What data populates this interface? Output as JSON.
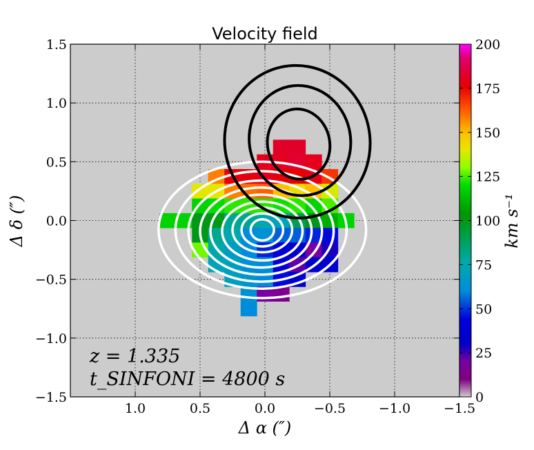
{
  "chart_data": {
    "type": "heatmap",
    "title": "Velocity field",
    "xlabel": "Δ α  (″)",
    "ylabel": "Δ δ  (″)",
    "xlim": [
      1.5,
      -1.5
    ],
    "ylim": [
      -1.5,
      1.5
    ],
    "grid": true,
    "x_ticks": [
      1.0,
      0.5,
      0.0,
      -0.5,
      -1.0,
      -1.5
    ],
    "x_tick_labels": [
      "1.0",
      "0.5",
      "0.0",
      "−0.5",
      "−1.0",
      "−1.5"
    ],
    "y_ticks": [
      -1.5,
      -1.0,
      -0.5,
      0.0,
      0.5,
      1.0,
      1.5
    ],
    "y_tick_labels": [
      "−1.5",
      "−1.0",
      "−0.5",
      "0.0",
      "0.5",
      "1.0",
      "1.5"
    ],
    "background_color": "#cccccc",
    "colorbar": {
      "label": "km s⁻¹",
      "range": [
        0,
        200
      ],
      "ticks": [
        0,
        25,
        50,
        75,
        100,
        125,
        150,
        175,
        200
      ],
      "tick_labels": [
        "0",
        "25",
        "50",
        "75",
        "100",
        "125",
        "150",
        "175",
        "200"
      ],
      "colormap": "nipy_spectral"
    },
    "annotations": [
      {
        "id": "redshift",
        "text": "z = 1.335"
      },
      {
        "id": "exposure",
        "text": "t_SINFONI = 4800 s"
      }
    ],
    "pixel_size": 0.125,
    "pixels": [
      {
        "x": -0.25,
        "y": 0.625,
        "v": 182
      },
      {
        "x": -0.125,
        "y": 0.625,
        "v": 182
      },
      {
        "x": 0.0,
        "y": 0.5,
        "v": 180
      },
      {
        "x": -0.125,
        "y": 0.5,
        "v": 181
      },
      {
        "x": -0.25,
        "y": 0.5,
        "v": 183
      },
      {
        "x": -0.375,
        "y": 0.5,
        "v": 180
      },
      {
        "x": 0.375,
        "y": 0.375,
        "v": 158
      },
      {
        "x": 0.25,
        "y": 0.375,
        "v": 178
      },
      {
        "x": 0.125,
        "y": 0.375,
        "v": 178
      },
      {
        "x": 0.0,
        "y": 0.375,
        "v": 180
      },
      {
        "x": -0.125,
        "y": 0.375,
        "v": 178
      },
      {
        "x": -0.25,
        "y": 0.375,
        "v": 176
      },
      {
        "x": -0.375,
        "y": 0.375,
        "v": 180
      },
      {
        "x": -0.5,
        "y": 0.375,
        "v": 168
      },
      {
        "x": 0.5,
        "y": 0.25,
        "v": 140
      },
      {
        "x": 0.375,
        "y": 0.25,
        "v": 140
      },
      {
        "x": 0.25,
        "y": 0.25,
        "v": 158
      },
      {
        "x": 0.125,
        "y": 0.25,
        "v": 160
      },
      {
        "x": 0.0,
        "y": 0.25,
        "v": 162
      },
      {
        "x": -0.125,
        "y": 0.25,
        "v": 150
      },
      {
        "x": -0.25,
        "y": 0.25,
        "v": 142
      },
      {
        "x": -0.375,
        "y": 0.25,
        "v": 150
      },
      {
        "x": -0.5,
        "y": 0.25,
        "v": 138
      },
      {
        "x": 0.5,
        "y": 0.125,
        "v": 118
      },
      {
        "x": 0.375,
        "y": 0.125,
        "v": 120
      },
      {
        "x": 0.25,
        "y": 0.125,
        "v": 123
      },
      {
        "x": 0.125,
        "y": 0.125,
        "v": 123
      },
      {
        "x": 0.0,
        "y": 0.125,
        "v": 123
      },
      {
        "x": -0.125,
        "y": 0.125,
        "v": 121
      },
      {
        "x": -0.25,
        "y": 0.125,
        "v": 123
      },
      {
        "x": -0.375,
        "y": 0.125,
        "v": 118
      },
      {
        "x": -0.5,
        "y": 0.125,
        "v": 125
      },
      {
        "x": 0.75,
        "y": 0.0,
        "v": 118
      },
      {
        "x": 0.625,
        "y": 0.0,
        "v": 118
      },
      {
        "x": 0.5,
        "y": 0.0,
        "v": 100
      },
      {
        "x": 0.375,
        "y": 0.0,
        "v": 100
      },
      {
        "x": 0.25,
        "y": 0.0,
        "v": 80
      },
      {
        "x": 0.125,
        "y": 0.0,
        "v": 80
      },
      {
        "x": 0.0,
        "y": 0.0,
        "v": 75
      },
      {
        "x": -0.125,
        "y": 0.0,
        "v": 72
      },
      {
        "x": -0.25,
        "y": 0.0,
        "v": 90
      },
      {
        "x": -0.375,
        "y": 0.0,
        "v": 100
      },
      {
        "x": -0.5,
        "y": 0.0,
        "v": 110
      },
      {
        "x": -0.625,
        "y": 0.0,
        "v": 118
      },
      {
        "x": 0.5,
        "y": -0.125,
        "v": 100
      },
      {
        "x": 0.375,
        "y": -0.125,
        "v": 80
      },
      {
        "x": 0.25,
        "y": -0.125,
        "v": 75
      },
      {
        "x": 0.125,
        "y": -0.125,
        "v": 60
      },
      {
        "x": 0.0,
        "y": -0.125,
        "v": 62
      },
      {
        "x": -0.125,
        "y": -0.125,
        "v": 55
      },
      {
        "x": -0.25,
        "y": -0.125,
        "v": 55
      },
      {
        "x": -0.375,
        "y": -0.125,
        "v": 48
      },
      {
        "x": -0.5,
        "y": -0.125,
        "v": 45
      },
      {
        "x": 0.5,
        "y": -0.25,
        "v": 128
      },
      {
        "x": 0.375,
        "y": -0.25,
        "v": 75
      },
      {
        "x": 0.25,
        "y": -0.25,
        "v": 68
      },
      {
        "x": 0.125,
        "y": -0.25,
        "v": 60
      },
      {
        "x": 0.0,
        "y": -0.25,
        "v": 48
      },
      {
        "x": -0.125,
        "y": -0.25,
        "v": 40
      },
      {
        "x": -0.25,
        "y": -0.25,
        "v": 30
      },
      {
        "x": -0.375,
        "y": -0.25,
        "v": 20
      },
      {
        "x": -0.5,
        "y": -0.25,
        "v": 28
      },
      {
        "x": 0.375,
        "y": -0.375,
        "v": 72
      },
      {
        "x": 0.25,
        "y": -0.375,
        "v": 70
      },
      {
        "x": 0.125,
        "y": -0.375,
        "v": 62
      },
      {
        "x": 0.0,
        "y": -0.375,
        "v": 60
      },
      {
        "x": -0.125,
        "y": -0.375,
        "v": 38
      },
      {
        "x": -0.25,
        "y": -0.375,
        "v": 22
      },
      {
        "x": -0.375,
        "y": -0.375,
        "v": 30
      },
      {
        "x": -0.5,
        "y": -0.375,
        "v": 35
      },
      {
        "x": 0.25,
        "y": -0.5,
        "v": 70
      },
      {
        "x": 0.125,
        "y": -0.5,
        "v": 65
      },
      {
        "x": 0.0,
        "y": -0.5,
        "v": 60
      },
      {
        "x": -0.125,
        "y": -0.5,
        "v": 45
      },
      {
        "x": -0.25,
        "y": -0.5,
        "v": 35
      },
      {
        "x": 0.125,
        "y": -0.625,
        "v": 62
      },
      {
        "x": 0.0,
        "y": -0.625,
        "v": 20
      },
      {
        "x": -0.125,
        "y": -0.625,
        "v": 15
      },
      {
        "x": 0.125,
        "y": -0.75,
        "v": 60
      }
    ],
    "contours_white": [
      {
        "cx": 0.02,
        "cy": -0.08,
        "rx": 0.8,
        "ry": 0.58
      },
      {
        "cx": 0.03,
        "cy": -0.08,
        "rx": 0.66,
        "ry": 0.5
      },
      {
        "cx": 0.03,
        "cy": -0.09,
        "rx": 0.56,
        "ry": 0.43
      },
      {
        "cx": 0.03,
        "cy": -0.09,
        "rx": 0.47,
        "ry": 0.37
      },
      {
        "cx": 0.03,
        "cy": -0.09,
        "rx": 0.39,
        "ry": 0.31
      },
      {
        "cx": 0.02,
        "cy": -0.09,
        "rx": 0.31,
        "ry": 0.25
      },
      {
        "cx": 0.02,
        "cy": -0.08,
        "rx": 0.23,
        "ry": 0.19
      },
      {
        "cx": 0.02,
        "cy": -0.08,
        "rx": 0.16,
        "ry": 0.14
      },
      {
        "cx": 0.02,
        "cy": -0.08,
        "rx": 0.09,
        "ry": 0.09
      }
    ],
    "contours_black": [
      {
        "cx": -0.26,
        "cy": 0.65,
        "rx": 0.24,
        "ry": 0.3
      },
      {
        "cx": -0.27,
        "cy": 0.68,
        "rx": 0.39,
        "ry": 0.47
      },
      {
        "cx": -0.25,
        "cy": 0.67,
        "rx": 0.56,
        "ry": 0.65
      }
    ]
  }
}
